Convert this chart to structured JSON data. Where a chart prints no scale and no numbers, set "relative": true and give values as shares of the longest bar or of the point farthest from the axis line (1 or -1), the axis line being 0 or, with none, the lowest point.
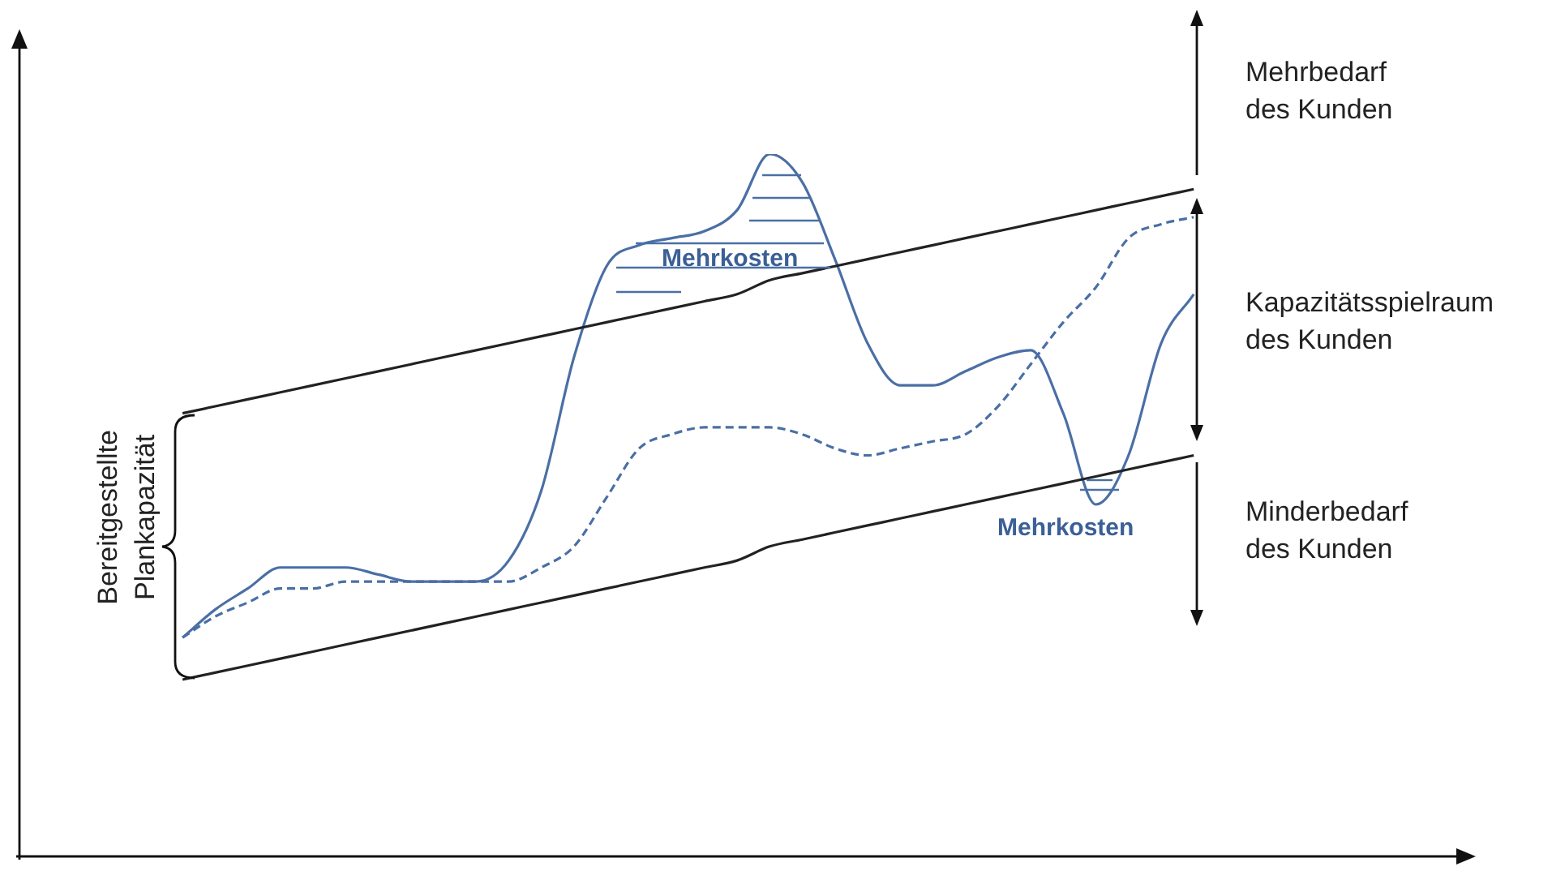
{
  "chart_data": {
    "type": "line",
    "relative": true,
    "legend": false,
    "marker": "none",
    "categories": [
      null,
      null,
      null,
      null,
      null,
      null,
      null,
      null,
      null,
      null,
      null,
      null,
      null,
      null,
      null,
      null,
      null,
      null,
      null,
      null,
      null,
      null,
      null,
      null,
      null,
      null,
      null,
      null,
      null,
      null,
      null,
      null,
      null,
      null,
      null,
      null,
      null,
      null,
      null,
      null,
      null,
      null,
      null,
      null,
      null
    ],
    "series": [
      {
        "color": "#222222",
        "line_style": "solid",
        "values": [
          null,
          null,
          null,
          null,
          null,
          0.63,
          0.64,
          0.65,
          0.66,
          0.67,
          0.68,
          0.69,
          0.7,
          0.71,
          0.72,
          0.73,
          0.74,
          0.75,
          0.76,
          0.77,
          0.78,
          0.79,
          0.8,
          0.82,
          0.83,
          0.84,
          0.85,
          0.86,
          0.87,
          0.88,
          0.89,
          0.9,
          0.91,
          0.92,
          0.93,
          0.94,
          0.95,
          null,
          null,
          null,
          null,
          null,
          null,
          null,
          null
        ]
      },
      {
        "color": "#222222",
        "line_style": "solid",
        "values": [
          null,
          null,
          null,
          null,
          null,
          0.25,
          0.26,
          0.27,
          0.28,
          0.29,
          0.3,
          0.31,
          0.32,
          0.33,
          0.34,
          0.35,
          0.36,
          0.37,
          0.38,
          0.39,
          0.4,
          0.41,
          0.42,
          0.44,
          0.45,
          0.46,
          0.47,
          0.48,
          0.49,
          0.5,
          0.51,
          0.52,
          0.53,
          0.54,
          0.55,
          0.56,
          0.57,
          null,
          null,
          null,
          null,
          null,
          null,
          null,
          null
        ]
      },
      {
        "color": "#4a6fa5",
        "line_style": "solid",
        "values": [
          null,
          null,
          null,
          null,
          null,
          0.31,
          0.35,
          0.38,
          0.41,
          0.41,
          0.41,
          0.4,
          0.39,
          0.39,
          0.39,
          0.42,
          0.52,
          0.71,
          0.84,
          0.87,
          0.88,
          0.89,
          0.92,
          1,
          0.96,
          0.85,
          0.73,
          0.67,
          0.67,
          0.69,
          0.71,
          0.72,
          0.63,
          0.5,
          0.57,
          0.73,
          0.8,
          null,
          null,
          null,
          null,
          null,
          null,
          null,
          null
        ]
      },
      {
        "color": "#4a6fa5",
        "line_style": "dashed",
        "values": [
          null,
          null,
          null,
          null,
          null,
          0.31,
          0.34,
          0.36,
          0.38,
          0.38,
          0.39,
          0.39,
          0.39,
          0.39,
          0.39,
          0.39,
          0.41,
          0.44,
          0.51,
          0.58,
          0.6,
          0.61,
          0.61,
          0.61,
          0.6,
          0.58,
          0.57,
          0.58,
          0.59,
          0.6,
          0.64,
          0.7,
          0.76,
          0.81,
          0.88,
          0.9,
          0.91,
          null,
          null,
          null,
          null,
          null,
          null,
          null,
          null
        ]
      }
    ],
    "annotations": [
      "Mehrkosten",
      "Mehrkosten",
      "Mehrbedarf\ndes Kunden",
      "Kapazitätsspielraum\ndes Kunden",
      "Minderbedarf\ndes Kunden",
      "Bereitgestellte\nPlankapazität"
    ]
  }
}
